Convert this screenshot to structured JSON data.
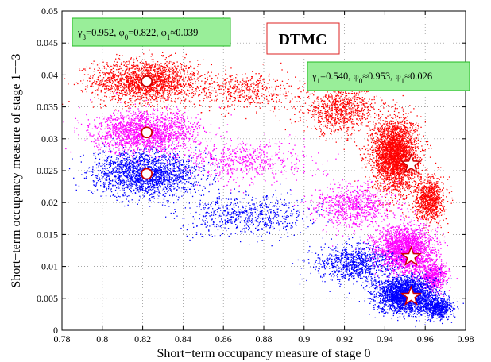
{
  "chart_data": {
    "type": "scatter",
    "title": "",
    "xlabel": "Short−term occupancy measure of stage 0",
    "ylabel": "Short−term occupancy measure of stage 1−−3",
    "xlim": [
      0.78,
      0.98
    ],
    "ylim": [
      0,
      0.05
    ],
    "x_ticks": [
      "0.78",
      "0.8",
      "0.82",
      "0.84",
      "0.86",
      "0.88",
      "0.9",
      "0.92",
      "0.94",
      "0.96",
      "0.98"
    ],
    "y_ticks": [
      "0",
      "0.005",
      "0.01",
      "0.015",
      "0.02",
      "0.025",
      "0.03",
      "0.035",
      "0.04",
      "0.045",
      "0.05"
    ],
    "grid": true,
    "legend": "none",
    "tag": "DTMC",
    "annotations": [
      {
        "text": "γ3=0.952, φ0=0.822, φ1≈0.039",
        "position": "top-left"
      },
      {
        "text": "γ1=0.540, φ0≈0.953, φ1≈0.026",
        "position": "top-right"
      }
    ],
    "series": [
      {
        "color": "#ff0000",
        "cloud": [
          {
            "x": 0.822,
            "y": 0.039,
            "sx": 0.013,
            "sy": 0.0017,
            "n": 1900
          },
          {
            "x": 0.87,
            "y": 0.0375,
            "sx": 0.014,
            "sy": 0.0015,
            "n": 500
          },
          {
            "x": 0.918,
            "y": 0.0345,
            "sx": 0.009,
            "sy": 0.0018,
            "n": 900
          },
          {
            "x": 0.945,
            "y": 0.0275,
            "sx": 0.0055,
            "sy": 0.0028,
            "n": 3000
          },
          {
            "x": 0.962,
            "y": 0.0205,
            "sx": 0.0035,
            "sy": 0.0018,
            "n": 900
          }
        ],
        "markers": [
          {
            "shape": "circle",
            "x": 0.822,
            "y": 0.039
          },
          {
            "shape": "star",
            "x": 0.953,
            "y": 0.026
          }
        ]
      },
      {
        "color": "#ff00ff",
        "cloud": [
          {
            "x": 0.822,
            "y": 0.031,
            "sx": 0.013,
            "sy": 0.0016,
            "n": 1800
          },
          {
            "x": 0.87,
            "y": 0.0265,
            "sx": 0.016,
            "sy": 0.0016,
            "n": 600
          },
          {
            "x": 0.925,
            "y": 0.0195,
            "sx": 0.01,
            "sy": 0.0017,
            "n": 800
          },
          {
            "x": 0.95,
            "y": 0.0125,
            "sx": 0.007,
            "sy": 0.0019,
            "n": 2300
          },
          {
            "x": 0.964,
            "y": 0.0085,
            "sx": 0.0035,
            "sy": 0.0012,
            "n": 600
          }
        ],
        "markers": [
          {
            "shape": "circle",
            "x": 0.822,
            "y": 0.031
          },
          {
            "shape": "star",
            "x": 0.953,
            "y": 0.0115
          }
        ]
      },
      {
        "color": "#0000ff",
        "cloud": [
          {
            "x": 0.822,
            "y": 0.0245,
            "sx": 0.013,
            "sy": 0.0017,
            "n": 2000
          },
          {
            "x": 0.872,
            "y": 0.018,
            "sx": 0.016,
            "sy": 0.0016,
            "n": 700
          },
          {
            "x": 0.925,
            "y": 0.0105,
            "sx": 0.01,
            "sy": 0.0015,
            "n": 900
          },
          {
            "x": 0.95,
            "y": 0.0055,
            "sx": 0.007,
            "sy": 0.0014,
            "n": 2500
          },
          {
            "x": 0.966,
            "y": 0.0035,
            "sx": 0.0035,
            "sy": 0.0008,
            "n": 600
          }
        ],
        "markers": [
          {
            "shape": "circle",
            "x": 0.822,
            "y": 0.0245
          },
          {
            "shape": "star",
            "x": 0.953,
            "y": 0.0053
          }
        ]
      }
    ]
  }
}
